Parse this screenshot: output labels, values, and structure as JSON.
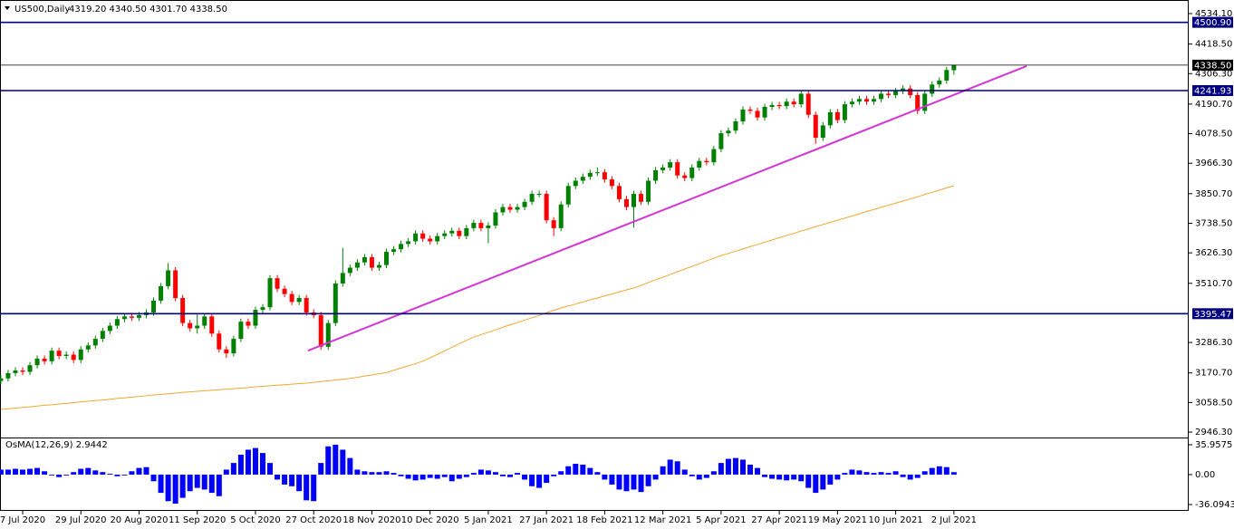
{
  "chart_data": [
    {
      "type": "candlestick",
      "title": "US500,Daily",
      "subtitle": "4319.20 4340.50 4301.70 4338.50",
      "categories": [
        null,
        null,
        null,
        "7 Jul 2020",
        null,
        null,
        null,
        null,
        null,
        null,
        null,
        "29 Jul 2020",
        null,
        null,
        null,
        null,
        null,
        null,
        null,
        "20 Aug 2020",
        null,
        null,
        null,
        null,
        null,
        null,
        null,
        "11 Sep 2020",
        null,
        null,
        null,
        null,
        null,
        null,
        null,
        "5 Oct 2020",
        null,
        null,
        null,
        null,
        null,
        null,
        null,
        "27 Oct 2020",
        null,
        null,
        null,
        null,
        null,
        null,
        null,
        "18 Nov 2020",
        null,
        null,
        null,
        null,
        null,
        null,
        null,
        "10 Dec 2020",
        null,
        null,
        null,
        null,
        null,
        null,
        null,
        "5 Jan 2021",
        null,
        null,
        null,
        null,
        null,
        null,
        null,
        "27 Jan 2021",
        null,
        null,
        null,
        null,
        null,
        null,
        null,
        "18 Feb 2021",
        null,
        null,
        null,
        null,
        null,
        null,
        null,
        "12 Mar 2021",
        null,
        null,
        null,
        null,
        null,
        null,
        null,
        "5 Apr 2021",
        null,
        null,
        null,
        null,
        null,
        null,
        null,
        "27 Apr 2021",
        null,
        null,
        null,
        null,
        null,
        null,
        null,
        "19 May 2021",
        null,
        null,
        null,
        null,
        null,
        null,
        null,
        "10 Jun 2021",
        null,
        null,
        null,
        null,
        null,
        null,
        null,
        "2 Jul 2021"
      ],
      "open": [
        3140,
        3150,
        3170,
        3180,
        3175,
        3200,
        3225,
        3215,
        3255,
        3235,
        3240,
        3220,
        3260,
        3275,
        3300,
        3330,
        3350,
        3375,
        3385,
        3380,
        3390,
        3400,
        3445,
        3500,
        3560,
        3455,
        3360,
        3340,
        3350,
        3385,
        3320,
        3260,
        3245,
        3300,
        3365,
        3350,
        3410,
        3420,
        3530,
        3490,
        3470,
        3440,
        3455,
        3400,
        3390,
        3270,
        3360,
        3510,
        3550,
        3570,
        3590,
        3610,
        3570,
        3580,
        3630,
        3640,
        3660,
        3670,
        3700,
        3680,
        3670,
        3690,
        3700,
        3710,
        3690,
        3720,
        3740,
        3720,
        3730,
        3780,
        3800,
        3790,
        3800,
        3820,
        3850,
        3850,
        3750,
        3720,
        3810,
        3880,
        3900,
        3915,
        3930,
        3932,
        3905,
        3880,
        3830,
        3800,
        3850,
        3820,
        3900,
        3940,
        3950,
        3970,
        3920,
        3910,
        3950,
        3975,
        3970,
        4020,
        4080,
        4090,
        4125,
        4170,
        4165,
        4140,
        4180,
        4187,
        4183,
        4200,
        4190,
        4230,
        4150,
        4063,
        4110,
        4160,
        4130,
        4190,
        4200,
        4210,
        4200,
        4210,
        4230,
        4225,
        4240,
        4250,
        4225,
        4165,
        4230,
        4265,
        4280,
        4319.2
      ],
      "high": [
        3162,
        3182,
        3192,
        3192,
        3212,
        3237,
        3237,
        3267,
        3267,
        3252,
        3252,
        3272,
        3287,
        3312,
        3342,
        3362,
        3387,
        3397,
        3397,
        3402,
        3412,
        3457,
        3512,
        3588,
        3572,
        3467,
        3372,
        3392,
        3397,
        3397,
        3332,
        3272,
        3312,
        3377,
        3377,
        3422,
        3432,
        3542,
        3542,
        3502,
        3482,
        3467,
        3467,
        3412,
        3402,
        3372,
        3522,
        3645,
        3582,
        3602,
        3622,
        3622,
        3592,
        3642,
        3652,
        3672,
        3682,
        3712,
        3712,
        3692,
        3702,
        3712,
        3722,
        3722,
        3732,
        3752,
        3752,
        3742,
        3792,
        3812,
        3812,
        3812,
        3832,
        3862,
        3862,
        3862,
        3762,
        3822,
        3892,
        3912,
        3927,
        3942,
        3950,
        3944,
        3917,
        3892,
        3842,
        3862,
        3862,
        3912,
        3952,
        3962,
        3982,
        3982,
        3932,
        3962,
        3987,
        3987,
        4032,
        4092,
        4102,
        4137,
        4182,
        4182,
        4177,
        4192,
        4199,
        4199,
        4212,
        4212,
        4242,
        4242,
        4162,
        4122,
        4172,
        4172,
        4202,
        4212,
        4222,
        4222,
        4222,
        4242,
        4242,
        4252,
        4262,
        4262,
        4237,
        4242,
        4277,
        4292,
        4332,
        4340.5
      ],
      "low": [
        3128,
        3138,
        3158,
        3163,
        3163,
        3188,
        3203,
        3203,
        3223,
        3223,
        3208,
        3208,
        3248,
        3263,
        3288,
        3318,
        3338,
        3363,
        3368,
        3368,
        3378,
        3388,
        3433,
        3488,
        3443,
        3348,
        3328,
        3320,
        3338,
        3308,
        3248,
        3228,
        3233,
        3288,
        3338,
        3338,
        3398,
        3408,
        3478,
        3458,
        3428,
        3428,
        3388,
        3378,
        3258,
        3258,
        3348,
        3498,
        3538,
        3558,
        3578,
        3558,
        3558,
        3568,
        3618,
        3628,
        3648,
        3658,
        3668,
        3658,
        3658,
        3678,
        3688,
        3678,
        3678,
        3708,
        3708,
        3663,
        3718,
        3768,
        3778,
        3778,
        3788,
        3808,
        3838,
        3738,
        3690,
        3708,
        3798,
        3868,
        3888,
        3903,
        3918,
        3893,
        3868,
        3818,
        3788,
        3722,
        3808,
        3808,
        3888,
        3928,
        3938,
        3908,
        3898,
        3898,
        3938,
        3958,
        3958,
        4008,
        4068,
        4078,
        4113,
        4153,
        4128,
        4128,
        4168,
        4171,
        4171,
        4178,
        4178,
        4138,
        4040,
        4051,
        4098,
        4118,
        4118,
        4178,
        4188,
        4188,
        4188,
        4198,
        4213,
        4213,
        4228,
        4213,
        4153,
        4153,
        4218,
        4253,
        4268,
        4301.7
      ],
      "close": [
        3150,
        3170,
        3180,
        3175,
        3200,
        3225,
        3215,
        3255,
        3235,
        3240,
        3220,
        3260,
        3275,
        3300,
        3330,
        3350,
        3375,
        3385,
        3380,
        3390,
        3400,
        3445,
        3500,
        3560,
        3455,
        3360,
        3340,
        3350,
        3385,
        3320,
        3260,
        3245,
        3300,
        3365,
        3350,
        3410,
        3420,
        3530,
        3490,
        3470,
        3440,
        3455,
        3400,
        3390,
        3270,
        3360,
        3510,
        3550,
        3570,
        3590,
        3610,
        3570,
        3580,
        3630,
        3640,
        3660,
        3670,
        3700,
        3680,
        3670,
        3690,
        3700,
        3710,
        3690,
        3720,
        3740,
        3720,
        3730,
        3780,
        3800,
        3790,
        3800,
        3820,
        3850,
        3850,
        3750,
        3720,
        3810,
        3880,
        3900,
        3915,
        3930,
        3932,
        3905,
        3880,
        3830,
        3800,
        3850,
        3820,
        3900,
        3940,
        3950,
        3970,
        3920,
        3910,
        3950,
        3975,
        3970,
        4020,
        4080,
        4090,
        4125,
        4170,
        4165,
        4140,
        4180,
        4187,
        4183,
        4200,
        4190,
        4230,
        4150,
        4063,
        4110,
        4160,
        4130,
        4190,
        4200,
        4210,
        4200,
        4210,
        4230,
        4225,
        4240,
        4250,
        4225,
        4165,
        4230,
        4265,
        4280,
        4320,
        4338.5
      ],
      "up_color": "#008000",
      "down_color": "#ff0000",
      "ma": {
        "color": "#f0a830",
        "values": [
          3032,
          3035,
          3037,
          3040,
          3042,
          3045,
          3048,
          3050,
          3053,
          3055,
          3058,
          3061,
          3063,
          3066,
          3068,
          3071,
          3074,
          3076,
          3079,
          3081,
          3084,
          3087,
          3089,
          3092,
          3094,
          3097,
          3099,
          3101,
          3103,
          3105,
          3107,
          3109,
          3111,
          3113,
          3115,
          3118,
          3120,
          3122,
          3124,
          3126,
          3128,
          3130,
          3132,
          3135,
          3138,
          3141,
          3144,
          3147,
          3150,
          3154,
          3159,
          3163,
          3168,
          3172,
          3181,
          3189,
          3198,
          3206,
          3215,
          3228,
          3241,
          3254,
          3268,
          3281,
          3294,
          3307,
          3316,
          3325,
          3334,
          3344,
          3353,
          3362,
          3371,
          3380,
          3389,
          3399,
          3408,
          3417,
          3425,
          3432,
          3440,
          3448,
          3455,
          3463,
          3470,
          3478,
          3486,
          3493,
          3503,
          3514,
          3524,
          3534,
          3544,
          3555,
          3565,
          3575,
          3585,
          3596,
          3606,
          3616,
          3624,
          3633,
          3641,
          3650,
          3658,
          3667,
          3675,
          3684,
          3692,
          3700,
          3709,
          3717,
          3726,
          3734,
          3742,
          3750,
          3758,
          3766,
          3774,
          3783,
          3791,
          3799,
          3807,
          3815,
          3823,
          3831,
          3839,
          3848,
          3856,
          3864,
          3873,
          3881
        ]
      },
      "levels": [
        {
          "value": 4500.9,
          "label": "4500.90",
          "color": "#000080"
        },
        {
          "value": 4338.5,
          "label": "4338.50",
          "color": "#000000"
        },
        {
          "value": 4241.93,
          "label": "4241.93",
          "color": "#000080"
        },
        {
          "value": 3395.47,
          "label": "3395.47",
          "color": "#000080"
        }
      ],
      "trendline": {
        "x": [
          42.2,
          141
        ],
        "values": [
          3255,
          4335
        ],
        "color": "#d633d6"
      },
      "ylim": [
        2925.7,
        4575.3
      ],
      "yticks": [
        {
          "value": 4534.1,
          "label": "4534.10"
        },
        {
          "value": 4418.5,
          "label": "4418.50"
        },
        {
          "value": 4306.3,
          "label": "4306.30"
        },
        {
          "value": 4190.7,
          "label": "4190.70"
        },
        {
          "value": 4078.5,
          "label": "4078.50"
        },
        {
          "value": 3966.3,
          "label": "3966.30"
        },
        {
          "value": 3850.7,
          "label": "3850.70"
        },
        {
          "value": 3738.5,
          "label": "3738.50"
        },
        {
          "value": 3626.3,
          "label": "3626.30"
        },
        {
          "value": 3510.7,
          "label": "3510.70"
        },
        {
          "value": 3286.3,
          "label": "3286.30"
        },
        {
          "value": 3170.7,
          "label": "3170.70"
        },
        {
          "value": 3058.5,
          "label": "3058.50"
        },
        {
          "value": 2946.3,
          "label": "2946.30"
        }
      ],
      "grid": false
    },
    {
      "type": "bar",
      "title": "OsMA(12,26,9) 2.9442",
      "color": "#0000ff",
      "values": [
        6,
        6,
        7,
        6,
        7,
        8,
        4,
        -1,
        -3,
        -1,
        3,
        7,
        8,
        5,
        3,
        1,
        -2,
        -1,
        4,
        8,
        9,
        -8,
        -22,
        -32,
        -35,
        -28,
        -20,
        -16,
        -18,
        -22,
        -26,
        6,
        14,
        24,
        30,
        32,
        26,
        14,
        -6,
        -12,
        -14,
        -20,
        -31,
        -32,
        14,
        34,
        36,
        30,
        20,
        6,
        4,
        3,
        3,
        4,
        2,
        -2,
        -5,
        -7,
        -6,
        -4,
        -5,
        -3,
        -8,
        -5,
        -3,
        2,
        6,
        5,
        3,
        -2,
        -3,
        2,
        -6,
        -14,
        -16,
        -10,
        -2,
        4,
        10,
        13,
        12,
        8,
        3,
        -6,
        -12,
        -18,
        -20,
        -18,
        -21,
        -14,
        -6,
        10,
        18,
        16,
        6,
        -2,
        -6,
        -4,
        4,
        14,
        19,
        20,
        18,
        12,
        8,
        -3,
        -5,
        -6,
        -7,
        -6,
        -8,
        -16,
        -22,
        -18,
        -12,
        -6,
        2,
        6,
        5,
        3,
        2,
        3,
        2,
        4,
        -3,
        -6,
        -4,
        4,
        8,
        10,
        9,
        2.9442
      ],
      "ylim": [
        -41.55,
        42.5
      ],
      "yticks": [
        35.9575,
        {
          "value": 0,
          "label": "0.00"
        },
        -36.0943
      ]
    }
  ]
}
